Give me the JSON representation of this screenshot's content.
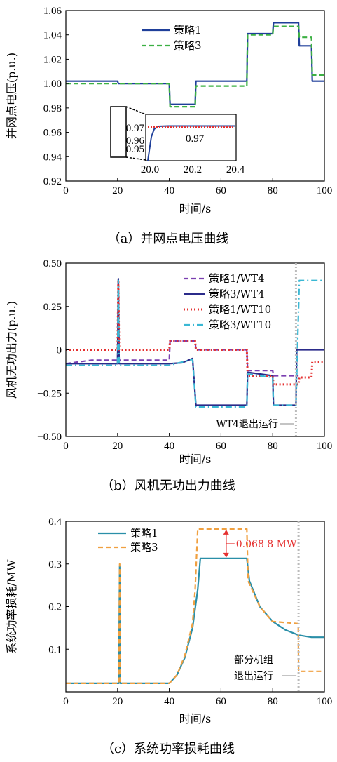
{
  "chart_data": [
    {
      "type": "line",
      "xlabel": "时间/s",
      "ylabel": "并网点电压(p.u.)",
      "caption": "（a）并网点电压曲线",
      "xlim": [
        0,
        100
      ],
      "ylim": [
        0.92,
        1.06
      ],
      "xticks": [
        "0",
        "20",
        "40",
        "60",
        "80",
        "100"
      ],
      "yticks": [
        "0.92",
        "0.94",
        "0.96",
        "0.98",
        "1.00",
        "1.02",
        "1.04",
        "1.06"
      ],
      "legend_position": "top-center",
      "series": [
        {
          "name": "策略1",
          "color": "#1f3f9a",
          "style": "solid",
          "x": [
            0,
            20,
            20.3,
            40,
            40.3,
            50,
            50.3,
            70,
            70.3,
            80,
            80.3,
            90,
            90.3,
            95,
            95.3,
            100
          ],
          "y": [
            1.002,
            1.002,
            1.0,
            1.0,
            0.983,
            0.983,
            1.002,
            1.002,
            1.041,
            1.041,
            1.05,
            1.05,
            1.031,
            1.031,
            1.002,
            1.002
          ]
        },
        {
          "name": "策略3",
          "color": "#3cb043",
          "style": "dashed",
          "x": [
            0,
            20,
            20.3,
            40,
            40.3,
            50,
            50.3,
            70,
            70.3,
            80,
            80.3,
            90,
            90.3,
            95,
            95.3,
            100
          ],
          "y": [
            1.0,
            1.0,
            1.0,
            1.0,
            0.981,
            0.981,
            0.998,
            0.998,
            1.04,
            1.04,
            1.047,
            1.047,
            1.038,
            1.038,
            1.007,
            1.007
          ]
        }
      ],
      "inset": {
        "xlim": [
          20.0,
          20.4
        ],
        "xticks": [
          "20.0",
          "20.2",
          "20.4"
        ],
        "yticks": [
          "0.95",
          "0.96",
          "0.97"
        ],
        "annotation": "0.97"
      }
    },
    {
      "type": "line",
      "xlabel": "时间/s",
      "ylabel": "风机无功出力(p.u.)",
      "caption": "（b）风机无功出力曲线",
      "xlim": [
        0,
        100
      ],
      "ylim": [
        -0.5,
        0.5
      ],
      "xticks": [
        "0",
        "20",
        "40",
        "60",
        "80",
        "100"
      ],
      "yticks": [
        "-0.50",
        "-0.25",
        "0",
        "0.25",
        "0.50"
      ],
      "legend_position": "top-right",
      "annotation": "WT4退出运行",
      "series": [
        {
          "name": "策略1/WT4",
          "color": "#7a3fb0",
          "style": "dashed",
          "x": [
            0,
            10,
            20,
            20.3,
            20.6,
            40,
            40.3,
            50,
            50.3,
            70,
            70.3,
            80,
            80.3,
            90
          ],
          "y": [
            -0.08,
            -0.06,
            -0.06,
            0.4,
            -0.06,
            -0.06,
            0.05,
            0.05,
            0.0,
            0.0,
            -0.12,
            -0.12,
            -0.15,
            -0.15
          ]
        },
        {
          "name": "策略3/WT4",
          "color": "#2b2b8a",
          "style": "solid",
          "x": [
            0,
            20,
            20.3,
            20.6,
            40,
            45,
            49,
            50.3,
            70,
            70.3,
            80,
            80.3,
            89,
            89.3,
            100
          ],
          "y": [
            -0.08,
            -0.08,
            0.41,
            -0.08,
            -0.08,
            -0.075,
            -0.05,
            -0.32,
            -0.32,
            -0.13,
            -0.15,
            -0.32,
            -0.32,
            0.0,
            0.0
          ]
        },
        {
          "name": "策略1/WT10",
          "color": "#e53030",
          "style": "dotted",
          "x": [
            0,
            10,
            20,
            20.3,
            20.6,
            40,
            40.3,
            50,
            50.3,
            70,
            70.3,
            80,
            80.3,
            90,
            90.3,
            95,
            95.3,
            100
          ],
          "y": [
            0.0,
            0.0,
            0.0,
            0.4,
            0.0,
            0.0,
            0.05,
            0.05,
            0.0,
            0.0,
            -0.15,
            -0.15,
            -0.2,
            -0.2,
            -0.16,
            -0.16,
            -0.07,
            -0.07
          ]
        },
        {
          "name": "策略3/WT10",
          "color": "#3ab8d4",
          "style": "dashdot",
          "x": [
            0,
            20,
            20.3,
            20.6,
            40,
            49,
            50.3,
            70,
            70.3,
            80,
            80.3,
            89,
            90.3,
            100
          ],
          "y": [
            -0.09,
            -0.09,
            0.4,
            -0.09,
            -0.09,
            -0.055,
            -0.33,
            -0.33,
            -0.14,
            -0.16,
            -0.32,
            -0.32,
            0.4,
            0.4
          ]
        }
      ]
    },
    {
      "type": "line",
      "xlabel": "时间/s",
      "ylabel": "系统功率损耗/MW",
      "caption": "（c）系统功率损耗曲线",
      "xlim": [
        0,
        100
      ],
      "ylim": [
        0.0,
        0.4
      ],
      "xticks": [
        "0",
        "20",
        "40",
        "60",
        "80",
        "100"
      ],
      "yticks": [
        "0.1",
        "0.2",
        "0.3",
        "0.4"
      ],
      "legend_position": "top-left",
      "annotations": [
        "0.068 8 MW",
        "部分机组",
        "退出运行"
      ],
      "series": [
        {
          "name": "策略1",
          "color": "#2a8fa8",
          "style": "solid",
          "x": [
            0,
            20.5,
            20.8,
            21.1,
            40,
            43,
            46,
            49,
            51,
            52,
            70,
            71,
            75,
            80,
            85,
            90,
            95,
            100
          ],
          "y": [
            0.02,
            0.02,
            0.295,
            0.02,
            0.02,
            0.04,
            0.08,
            0.15,
            0.24,
            0.313,
            0.313,
            0.26,
            0.2,
            0.165,
            0.145,
            0.133,
            0.128,
            0.128
          ]
        },
        {
          "name": "策略3",
          "color": "#f0a040",
          "style": "dashed",
          "x": [
            0,
            20.5,
            20.8,
            21.1,
            40,
            43,
            46,
            49,
            50,
            51,
            70,
            70.5,
            75,
            79.9,
            80,
            89.9,
            90,
            100
          ],
          "y": [
            0.02,
            0.02,
            0.3,
            0.02,
            0.02,
            0.04,
            0.085,
            0.16,
            0.24,
            0.382,
            0.382,
            0.26,
            0.2,
            0.165,
            0.165,
            0.16,
            0.048,
            0.048
          ]
        }
      ]
    }
  ]
}
